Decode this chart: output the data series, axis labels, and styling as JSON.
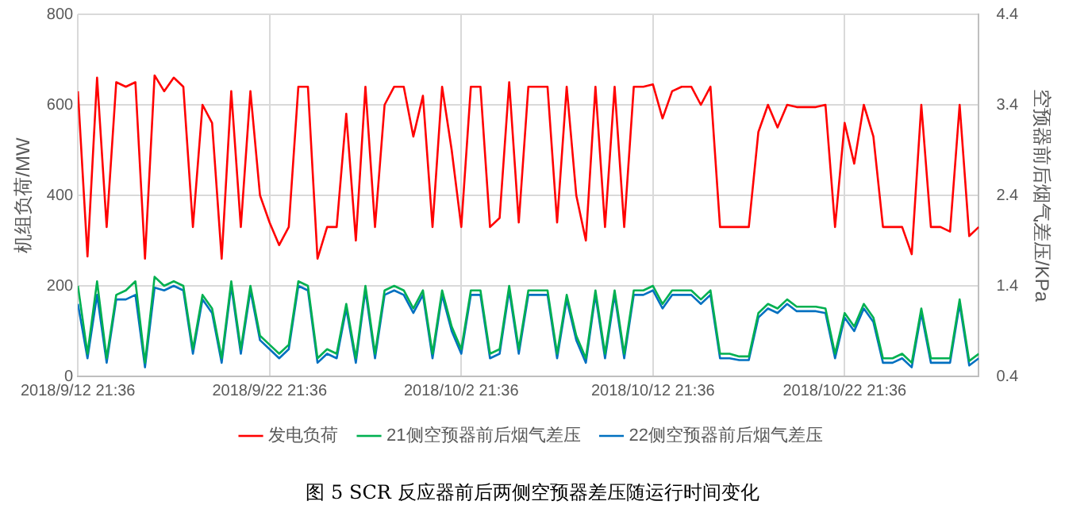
{
  "chart_data": {
    "type": "line",
    "ylabel": "机组负荷/MW",
    "y2label": "空预器前后烟气差压/KPa",
    "annotations": [
      "图 5 SCR 反应器前后两侧空预器差压随运行时间变化"
    ],
    "x": [
      "2018-09-12T21:36",
      "2018-09-13T09:36",
      "2018-09-13T21:36",
      "2018-09-14T09:36",
      "2018-09-14T21:36",
      "2018-09-15T09:36",
      "2018-09-15T21:36",
      "2018-09-16T09:36",
      "2018-09-16T21:36",
      "2018-09-17T09:36",
      "2018-09-17T21:36",
      "2018-09-18T09:36",
      "2018-09-18T21:36",
      "2018-09-19T09:36",
      "2018-09-19T21:36",
      "2018-09-20T09:36",
      "2018-09-20T21:36",
      "2018-09-21T09:36",
      "2018-09-21T21:36",
      "2018-09-22T09:36",
      "2018-09-22T21:36",
      "2018-09-23T09:36",
      "2018-09-23T21:36",
      "2018-09-24T09:36",
      "2018-09-24T21:36",
      "2018-09-25T09:36",
      "2018-09-25T21:36",
      "2018-09-26T09:36",
      "2018-09-26T21:36",
      "2018-09-27T09:36",
      "2018-09-27T21:36",
      "2018-09-28T09:36",
      "2018-09-28T21:36",
      "2018-09-29T09:36",
      "2018-09-29T21:36",
      "2018-09-30T09:36",
      "2018-09-30T21:36",
      "2018-10-01T09:36",
      "2018-10-01T21:36",
      "2018-10-02T09:36",
      "2018-10-02T21:36",
      "2018-10-03T09:36",
      "2018-10-03T21:36",
      "2018-10-04T09:36",
      "2018-10-04T21:36",
      "2018-10-05T09:36",
      "2018-10-05T21:36",
      "2018-10-06T09:36",
      "2018-10-06T21:36",
      "2018-10-07T09:36",
      "2018-10-07T21:36",
      "2018-10-08T09:36",
      "2018-10-08T21:36",
      "2018-10-09T09:36",
      "2018-10-09T21:36",
      "2018-10-10T09:36",
      "2018-10-10T21:36",
      "2018-10-11T09:36",
      "2018-10-11T21:36",
      "2018-10-12T09:36",
      "2018-10-12T21:36",
      "2018-10-13T09:36",
      "2018-10-13T21:36",
      "2018-10-14T09:36",
      "2018-10-14T21:36",
      "2018-10-15T09:36",
      "2018-10-15T21:36",
      "2018-10-16T09:36",
      "2018-10-16T21:36",
      "2018-10-17T09:36",
      "2018-10-17T21:36",
      "2018-10-18T09:36",
      "2018-10-18T21:36",
      "2018-10-19T09:36",
      "2018-10-19T21:36",
      "2018-10-20T09:36",
      "2018-10-20T21:36",
      "2018-10-21T09:36",
      "2018-10-21T21:36",
      "2018-10-22T09:36",
      "2018-10-22T21:36",
      "2018-10-23T09:36",
      "2018-10-23T21:36",
      "2018-10-24T09:36",
      "2018-10-24T21:36",
      "2018-10-25T09:36",
      "2018-10-25T21:36",
      "2018-10-26T09:36",
      "2018-10-26T21:36",
      "2018-10-27T09:36",
      "2018-10-27T21:36",
      "2018-10-28T09:36",
      "2018-10-28T21:36",
      "2018-10-29T09:36",
      "2018-10-29T21:36"
    ],
    "series": [
      {
        "name": "发电负荷",
        "color": "#ff0000",
        "values": [
          630,
          265,
          660,
          330,
          650,
          640,
          650,
          260,
          665,
          630,
          660,
          640,
          330,
          600,
          560,
          260,
          630,
          330,
          630,
          400,
          340,
          290,
          330,
          640,
          640,
          260,
          330,
          330,
          580,
          300,
          640,
          330,
          600,
          640,
          640,
          530,
          620,
          330,
          640,
          500,
          330,
          640,
          640,
          330,
          350,
          650,
          340,
          640,
          640,
          640,
          340,
          640,
          400,
          300,
          640,
          330,
          640,
          330,
          640,
          640,
          645,
          570,
          630,
          640,
          640,
          600,
          640,
          330,
          330,
          330,
          330,
          540,
          600,
          550,
          600,
          595,
          595,
          595,
          600,
          330,
          560,
          470,
          600,
          530,
          330,
          330,
          330,
          270,
          600,
          330,
          330,
          320,
          600,
          310,
          330
        ]
      },
      {
        "name": "21侧空预器前后烟气差压",
        "color": "#00b050",
        "axis": "y2",
        "values": [
          1.4,
          0.65,
          1.45,
          0.6,
          1.3,
          1.35,
          1.45,
          0.55,
          1.5,
          1.4,
          1.45,
          1.4,
          0.7,
          1.3,
          1.15,
          0.6,
          1.45,
          0.7,
          1.4,
          0.85,
          0.75,
          0.65,
          0.75,
          1.45,
          1.4,
          0.6,
          0.7,
          0.65,
          1.2,
          0.6,
          1.4,
          0.65,
          1.35,
          1.4,
          1.35,
          1.15,
          1.35,
          0.65,
          1.35,
          0.95,
          0.7,
          1.35,
          1.35,
          0.65,
          0.7,
          1.4,
          0.7,
          1.35,
          1.35,
          1.35,
          0.65,
          1.3,
          0.85,
          0.6,
          1.35,
          0.65,
          1.35,
          0.65,
          1.35,
          1.35,
          1.4,
          1.2,
          1.35,
          1.35,
          1.35,
          1.25,
          1.35,
          0.65,
          0.65,
          0.62,
          0.62,
          1.1,
          1.2,
          1.15,
          1.25,
          1.17,
          1.17,
          1.17,
          1.15,
          0.65,
          1.1,
          0.95,
          1.2,
          1.05,
          0.6,
          0.6,
          0.65,
          0.55,
          1.15,
          0.6,
          0.6,
          0.6,
          1.25,
          0.57,
          0.65
        ]
      },
      {
        "name": "22侧空预器前后烟气差压",
        "color": "#0070c0",
        "axis": "y2",
        "values": [
          1.2,
          0.6,
          1.3,
          0.55,
          1.25,
          1.25,
          1.3,
          0.5,
          1.38,
          1.35,
          1.4,
          1.35,
          0.65,
          1.25,
          1.1,
          0.55,
          1.4,
          0.65,
          1.35,
          0.8,
          0.7,
          0.6,
          0.7,
          1.4,
          1.35,
          0.55,
          0.65,
          0.6,
          1.15,
          0.55,
          1.35,
          0.6,
          1.3,
          1.35,
          1.3,
          1.1,
          1.3,
          0.6,
          1.3,
          0.9,
          0.65,
          1.3,
          1.3,
          0.6,
          0.65,
          1.35,
          0.65,
          1.3,
          1.3,
          1.3,
          0.6,
          1.25,
          0.8,
          0.55,
          1.3,
          0.6,
          1.3,
          0.6,
          1.3,
          1.3,
          1.35,
          1.15,
          1.3,
          1.3,
          1.3,
          1.2,
          1.3,
          0.6,
          0.6,
          0.58,
          0.58,
          1.05,
          1.15,
          1.1,
          1.2,
          1.12,
          1.12,
          1.12,
          1.1,
          0.6,
          1.05,
          0.9,
          1.15,
          1.0,
          0.55,
          0.55,
          0.6,
          0.5,
          1.1,
          0.55,
          0.55,
          0.55,
          1.2,
          0.52,
          0.6
        ]
      }
    ],
    "xlim": [
      "2018-09-12T21:36",
      "2018-10-29T21:36"
    ],
    "xticks": [
      {
        "value": "2018-09-12T21:36",
        "label": "2018/9/12 21:36"
      },
      {
        "value": "2018-09-22T21:36",
        "label": "2018/9/22 21:36"
      },
      {
        "value": "2018-10-02T21:36",
        "label": "2018/10/2 21:36"
      },
      {
        "value": "2018-10-12T21:36",
        "label": "2018/10/12 21:36"
      },
      {
        "value": "2018-10-22T21:36",
        "label": "2018/10/22 21:36"
      }
    ],
    "ylim": [
      0,
      800
    ],
    "yticks": [
      0,
      200,
      400,
      600,
      800
    ],
    "y2lim": [
      0.4,
      4.4
    ],
    "y2ticks": [
      0.4,
      1.4,
      2.4,
      3.4,
      4.4
    ],
    "grid": true,
    "legend": "bottom",
    "marker": "none",
    "line_style": "solid"
  }
}
